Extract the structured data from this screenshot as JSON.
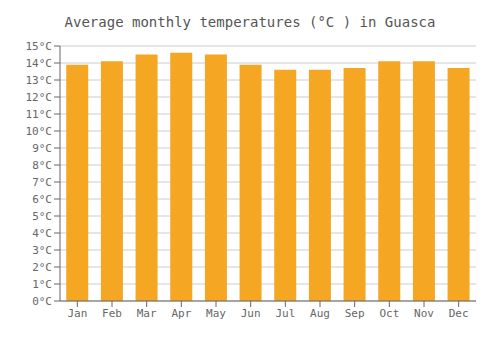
{
  "chart_data": {
    "type": "bar",
    "title": "Average monthly temperatures (°C ) in Guasca",
    "categories": [
      "Jan",
      "Feb",
      "Mar",
      "Apr",
      "May",
      "Jun",
      "Jul",
      "Aug",
      "Sep",
      "Oct",
      "Nov",
      "Dec"
    ],
    "values": [
      13.9,
      14.1,
      14.5,
      14.6,
      14.5,
      13.9,
      13.6,
      13.6,
      13.7,
      14.1,
      14.1,
      13.7
    ],
    "color": "#F5A623",
    "ylim": [
      0,
      15
    ],
    "yticks": [
      {
        "value": 0,
        "label": "0°C"
      },
      {
        "value": 1,
        "label": "1°C"
      },
      {
        "value": 2,
        "label": "2°C"
      },
      {
        "value": 3,
        "label": "3°C"
      },
      {
        "value": 4,
        "label": "4°C"
      },
      {
        "value": 5,
        "label": "5°C"
      },
      {
        "value": 6,
        "label": "6°C"
      },
      {
        "value": 7,
        "label": "7°C"
      },
      {
        "value": 8,
        "label": "8°C"
      },
      {
        "value": 9,
        "label": "9°C"
      },
      {
        "value": 10,
        "label": "10°C"
      },
      {
        "value": 11,
        "label": "11°C"
      },
      {
        "value": 12,
        "label": "12°C"
      },
      {
        "value": 13,
        "label": "13°C"
      },
      {
        "value": 14,
        "label": "14°C"
      },
      {
        "value": 15,
        "label": "15°C"
      }
    ],
    "grid": true
  }
}
